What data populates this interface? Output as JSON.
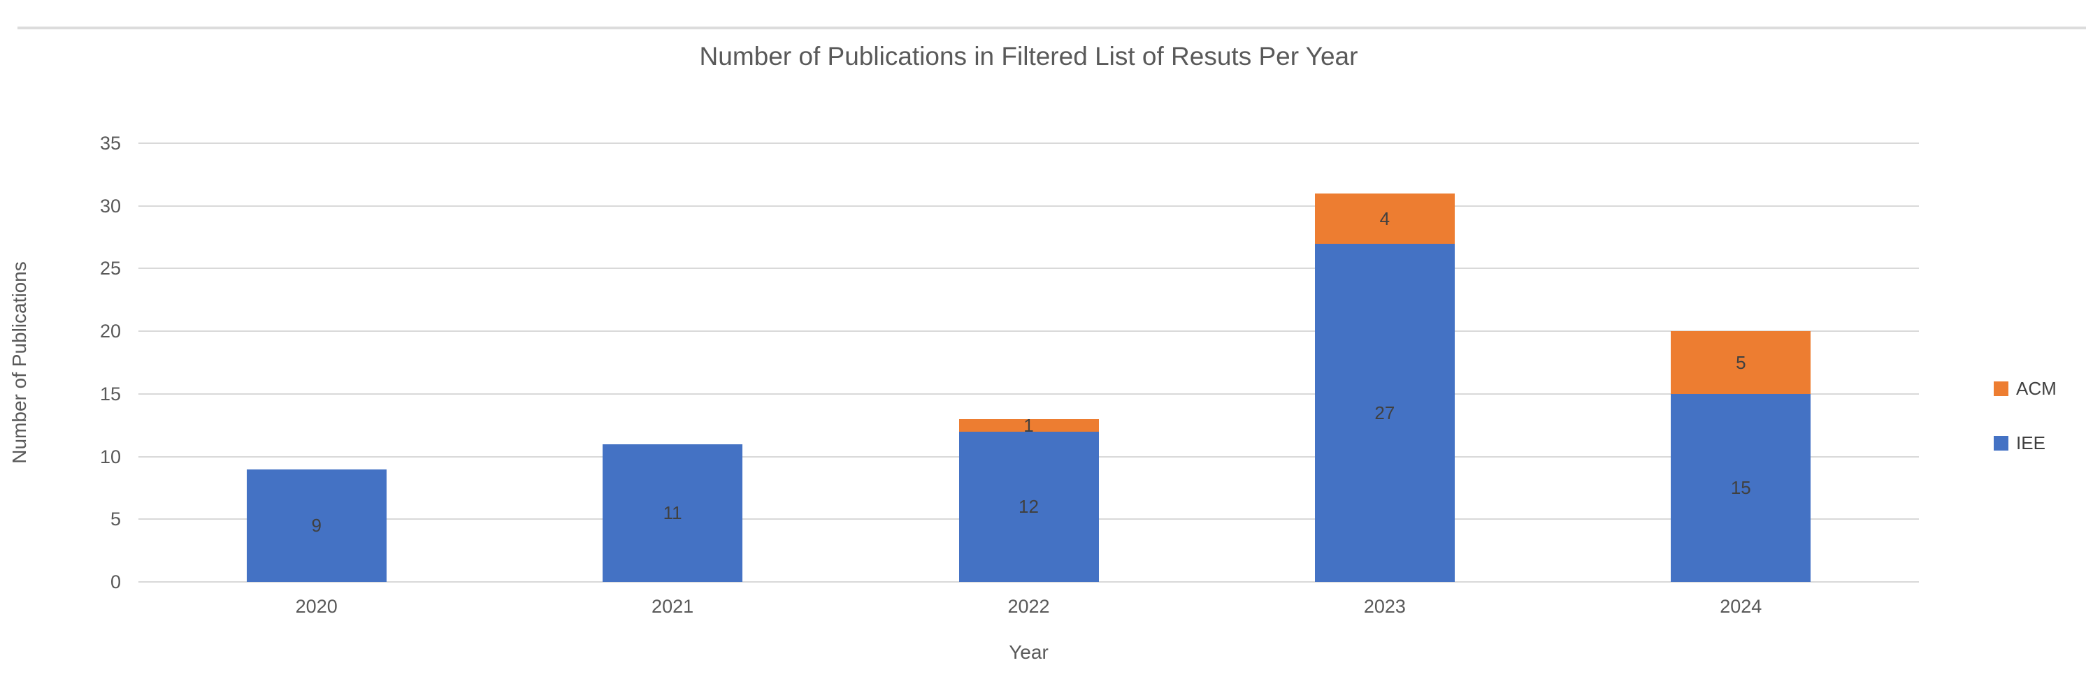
{
  "window": {
    "top_border": "divider"
  },
  "chart_data": {
    "type": "bar",
    "stacked": true,
    "title": "Number of Publications in Filtered List of Resuts Per Year",
    "xlabel": "Year",
    "ylabel": "Number of Publications",
    "categories": [
      "2020",
      "2021",
      "2022",
      "2023",
      "2024"
    ],
    "series": [
      {
        "name": "IEE",
        "color": "#4472c4",
        "values": [
          9,
          11,
          12,
          27,
          15
        ]
      },
      {
        "name": "ACM",
        "color": "#ed7d31",
        "values": [
          0,
          0,
          1,
          4,
          5
        ]
      }
    ],
    "data_labels_shown": [
      9,
      11,
      12,
      1,
      27,
      4,
      15,
      5
    ],
    "ylim": [
      0,
      35
    ],
    "ytick_step": 5,
    "yticks": [
      0,
      5,
      10,
      15,
      20,
      25,
      30,
      35
    ],
    "grid": true,
    "gridline_color": "#d9d9d9",
    "legend_position": "right",
    "legend_order": [
      "ACM",
      "IEE"
    ],
    "text_color": "#595959",
    "label_color": "#404040"
  }
}
